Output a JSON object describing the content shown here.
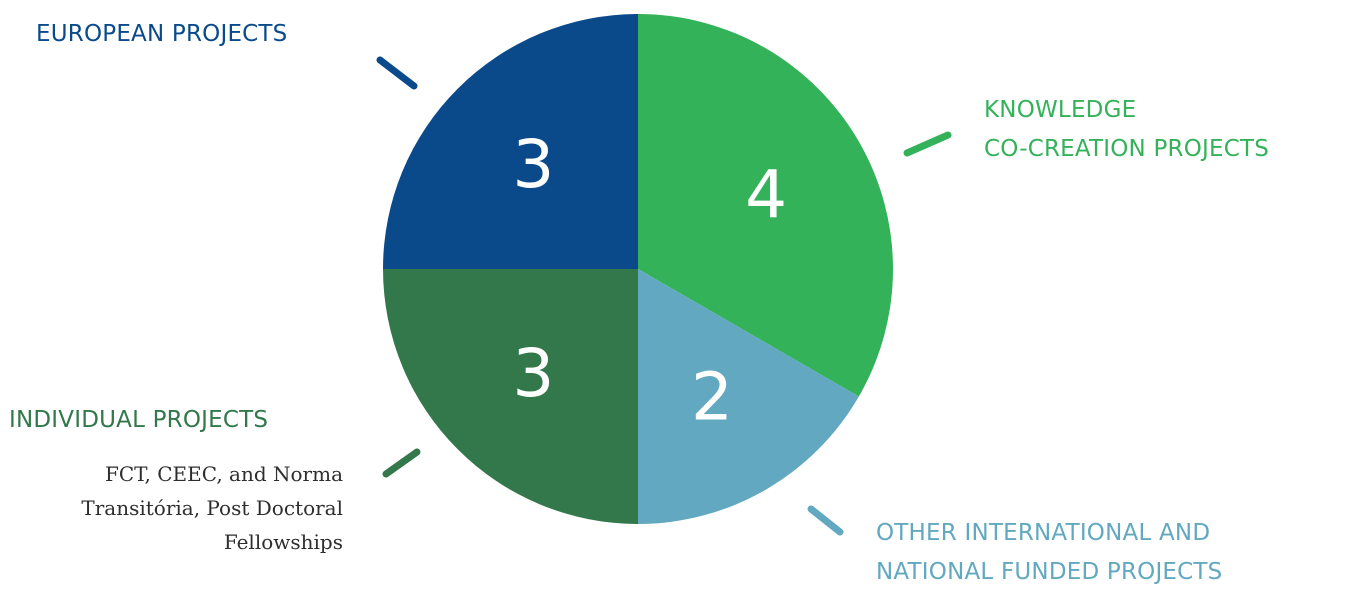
{
  "chart_data": {
    "type": "pie",
    "title": "",
    "start_angle_deg": 0,
    "direction": "clockwise",
    "slices": [
      {
        "label": "KNOWLEDGE CO-CREATION PROJECTS",
        "value": 4,
        "color": "#34b25a"
      },
      {
        "label": "OTHER INTERNATIONAL AND NATIONAL FUNDED PROJECTS",
        "value": 2,
        "color": "#62a8c0"
      },
      {
        "label": "INDIVIDUAL PROJECTS",
        "value": 3,
        "color": "#32784b"
      },
      {
        "label": "EUROPEAN PROJECTS",
        "value": 3,
        "color": "#0a4a8b"
      }
    ],
    "value_label_color": "#ffffff"
  },
  "legend": {
    "european": {
      "text": "EUROPEAN PROJECTS",
      "color": "#0a4a8b"
    },
    "knowledge": {
      "line1": "KNOWLEDGE",
      "line2": "CO-CREATION PROJECTS",
      "color": "#34b25a"
    },
    "individual": {
      "text": "INDIVIDUAL PROJECTS",
      "color": "#32784b",
      "description_lines": [
        "FCT, CEEC, and Norma",
        "Transitória, Post Doctoral",
        "Fellowships"
      ]
    },
    "other": {
      "line1": "OTHER INTERNATIONAL AND",
      "line2": "NATIONAL FUNDED PROJECTS",
      "color": "#62a8c0"
    }
  }
}
